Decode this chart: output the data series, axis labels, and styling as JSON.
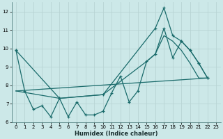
{
  "xlabel": "Humidex (Indice chaleur)",
  "background_color": "#cce8e8",
  "grid_color": "#b8d4d4",
  "line_color": "#1a6b6b",
  "xlim": [
    -0.5,
    23.5
  ],
  "ylim": [
    6,
    12.5
  ],
  "yticks": [
    6,
    7,
    8,
    9,
    10,
    11,
    12
  ],
  "xticks": [
    0,
    1,
    2,
    3,
    4,
    5,
    6,
    7,
    8,
    9,
    10,
    11,
    12,
    13,
    14,
    15,
    16,
    17,
    18,
    19,
    20,
    21,
    22,
    23
  ],
  "line1_x": [
    0,
    1,
    2,
    3,
    4,
    5,
    6,
    7,
    8,
    9,
    10,
    11,
    12,
    13,
    14,
    15,
    16,
    17,
    18,
    19,
    20,
    21,
    22
  ],
  "line1_y": [
    9.9,
    7.7,
    6.7,
    6.9,
    6.3,
    7.3,
    6.3,
    7.1,
    6.4,
    6.4,
    6.6,
    7.6,
    8.5,
    7.1,
    7.7,
    9.3,
    9.7,
    11.1,
    9.5,
    10.4,
    9.9,
    9.2,
    8.4
  ],
  "line2_x": [
    0,
    5,
    10,
    16,
    17,
    18,
    19,
    20,
    21,
    22
  ],
  "line2_y": [
    9.9,
    7.3,
    7.5,
    11.1,
    12.2,
    10.7,
    10.4,
    9.9,
    9.2,
    8.4
  ],
  "line3_x": [
    0,
    22
  ],
  "line3_y": [
    7.7,
    8.4
  ],
  "line4_x": [
    0,
    5,
    10,
    15,
    16,
    17,
    18,
    19,
    20,
    21,
    22
  ],
  "line4_y": [
    7.7,
    7.3,
    7.5,
    9.3,
    9.7,
    10.7,
    10.4,
    9.9,
    9.2,
    8.4,
    8.4
  ]
}
